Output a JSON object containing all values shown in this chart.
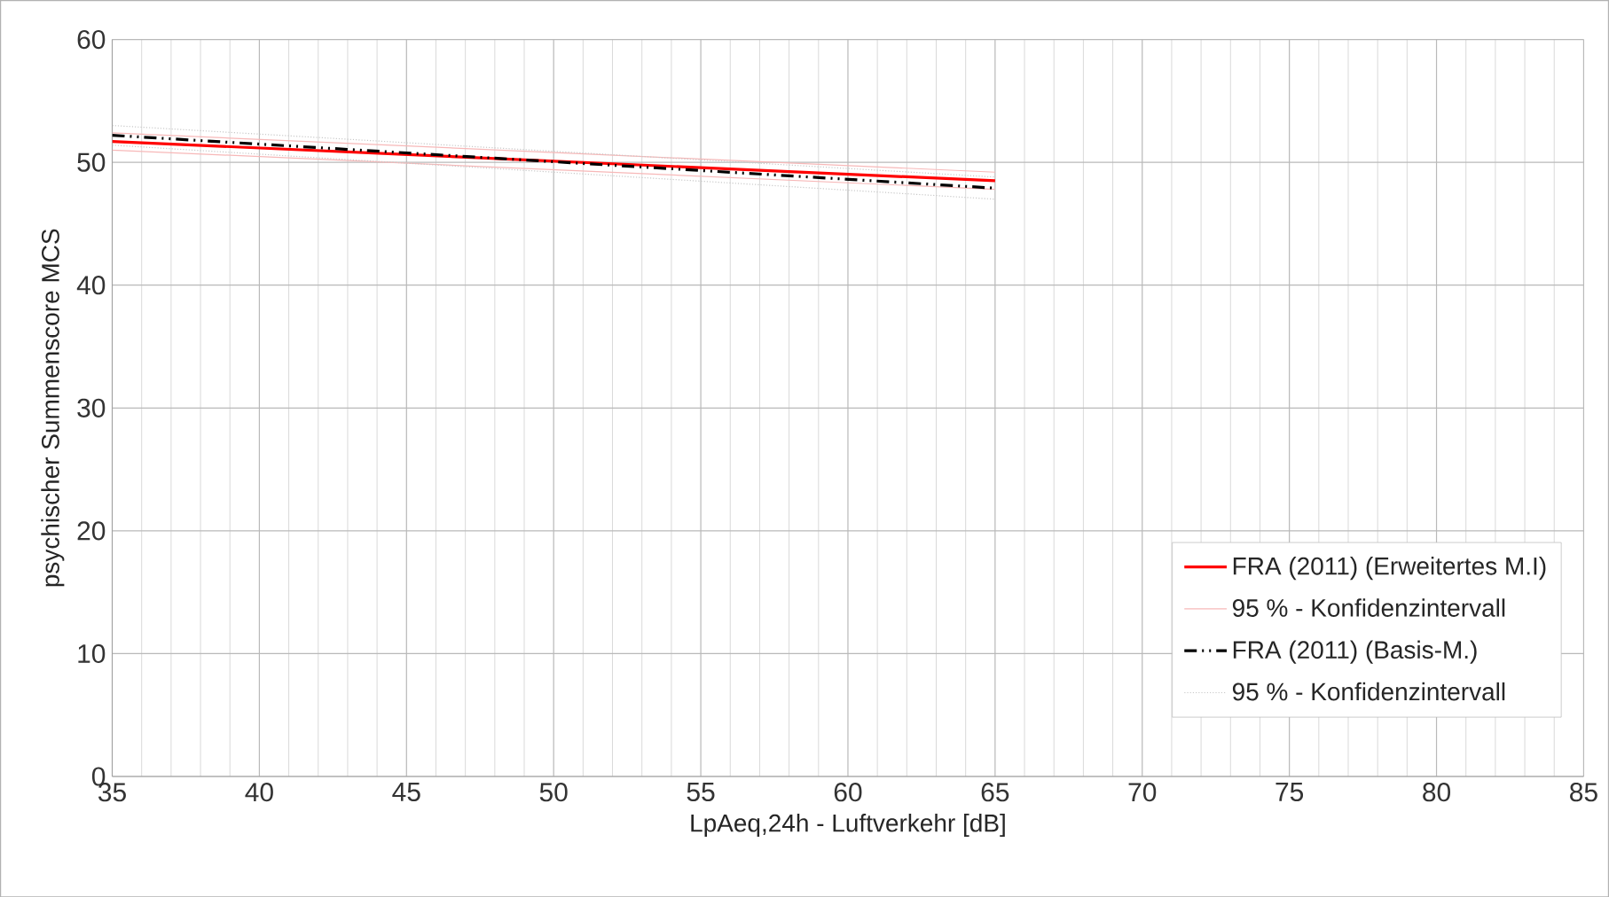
{
  "chart_data": {
    "type": "line",
    "xlabel": "LpAeq,24h - Luftverkehr [dB]",
    "ylabel": "psychischer Summenscore MCS",
    "xlim": [
      35,
      85
    ],
    "xticks": [
      35,
      40,
      45,
      50,
      55,
      60,
      65,
      70,
      75,
      80,
      85
    ],
    "ylim": [
      0,
      60
    ],
    "yticks": [
      0,
      10,
      20,
      30,
      40,
      50,
      60
    ],
    "grid": true,
    "legend": "bottom right",
    "x": [
      35,
      65
    ],
    "series": [
      {
        "name": "FRA (2011)  (Erweitertes  M.I)",
        "color": "#ff0000",
        "values": [
          51.7,
          48.5
        ],
        "line_style": "solid"
      },
      {
        "name": "95 % - Konfidenzintervall",
        "color": "#f7b8b8",
        "values": [
          51.0,
          47.8
        ],
        "line_style": "solid"
      },
      {
        "color": "#f7b8b8",
        "values": [
          52.4,
          49.2
        ],
        "line_style": "solid"
      },
      {
        "name": "FRA (2011)  (Basis-M.)",
        "color": "#000000",
        "values": [
          52.2,
          47.9
        ],
        "line_style": "dashed"
      },
      {
        "name": "95 % - Konfidenzintervall",
        "color": "#c8c8c8",
        "values": [
          51.4,
          47.0
        ],
        "line_style": "dotted"
      },
      {
        "color": "#c8c8c8",
        "values": [
          53.0,
          48.8
        ],
        "line_style": "dotted"
      }
    ]
  }
}
